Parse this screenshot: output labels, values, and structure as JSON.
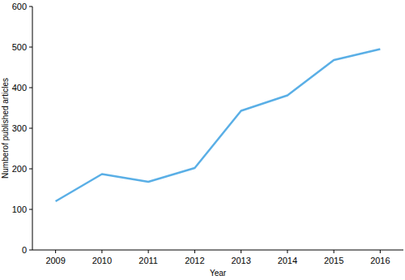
{
  "chart_data": {
    "type": "line",
    "x_label": "Year",
    "y_label": "Numberof published articles",
    "categories": [
      "2009",
      "2010",
      "2011",
      "2012",
      "2013",
      "2014",
      "2015",
      "2016"
    ],
    "values": [
      120,
      187,
      168,
      202,
      343,
      381,
      468,
      495
    ],
    "color": "#5aafe6",
    "ylim": [
      0,
      600
    ],
    "yticks": [
      0,
      100,
      200,
      300,
      400,
      500,
      600
    ],
    "grid": false
  }
}
